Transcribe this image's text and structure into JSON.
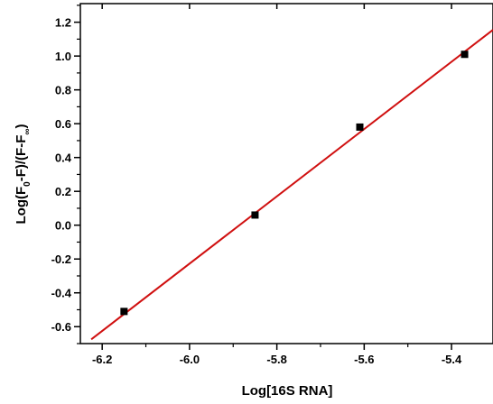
{
  "chart_data": {
    "type": "scatter",
    "xlabel": "Log[16S RNA]",
    "ylabel": {
      "base": "Log(F",
      "sub1": "0",
      "mid": "-F)/(F-F",
      "sub2": "∞",
      "end": ")"
    },
    "xlim": [
      -6.25,
      -5.305
    ],
    "ylim": [
      -0.7,
      1.31
    ],
    "x_ticks": [
      {
        "value": -6.2,
        "label": "-6.2"
      },
      {
        "value": -6.0,
        "label": "-6.0"
      },
      {
        "value": -5.8,
        "label": "-5.8"
      },
      {
        "value": -5.6,
        "label": "-5.6"
      },
      {
        "value": -5.4,
        "label": "-5.4"
      }
    ],
    "y_ticks": [
      {
        "value": -0.6,
        "label": "-0.6"
      },
      {
        "value": -0.4,
        "label": "-0.4"
      },
      {
        "value": -0.2,
        "label": "-0.2"
      },
      {
        "value": 0.0,
        "label": "0.0"
      },
      {
        "value": 0.2,
        "label": "0.2"
      },
      {
        "value": 0.4,
        "label": "0.4"
      },
      {
        "value": 0.6,
        "label": "0.6"
      },
      {
        "value": 0.8,
        "label": "0.8"
      },
      {
        "value": 1.0,
        "label": "1.0"
      },
      {
        "value": 1.2,
        "label": "1.2"
      }
    ],
    "series": [
      {
        "points": [
          {
            "x": -6.15,
            "y": -0.51
          },
          {
            "x": -5.85,
            "y": 0.06
          },
          {
            "x": -5.61,
            "y": 0.58
          },
          {
            "x": -5.37,
            "y": 1.01
          }
        ],
        "marker": "square",
        "color": "#000000"
      }
    ],
    "fit_line": {
      "x": [
        -6.225,
        -5.305
      ],
      "y": [
        -0.675,
        1.155
      ],
      "color": "#d01010"
    },
    "grid": false,
    "legend": "none"
  }
}
